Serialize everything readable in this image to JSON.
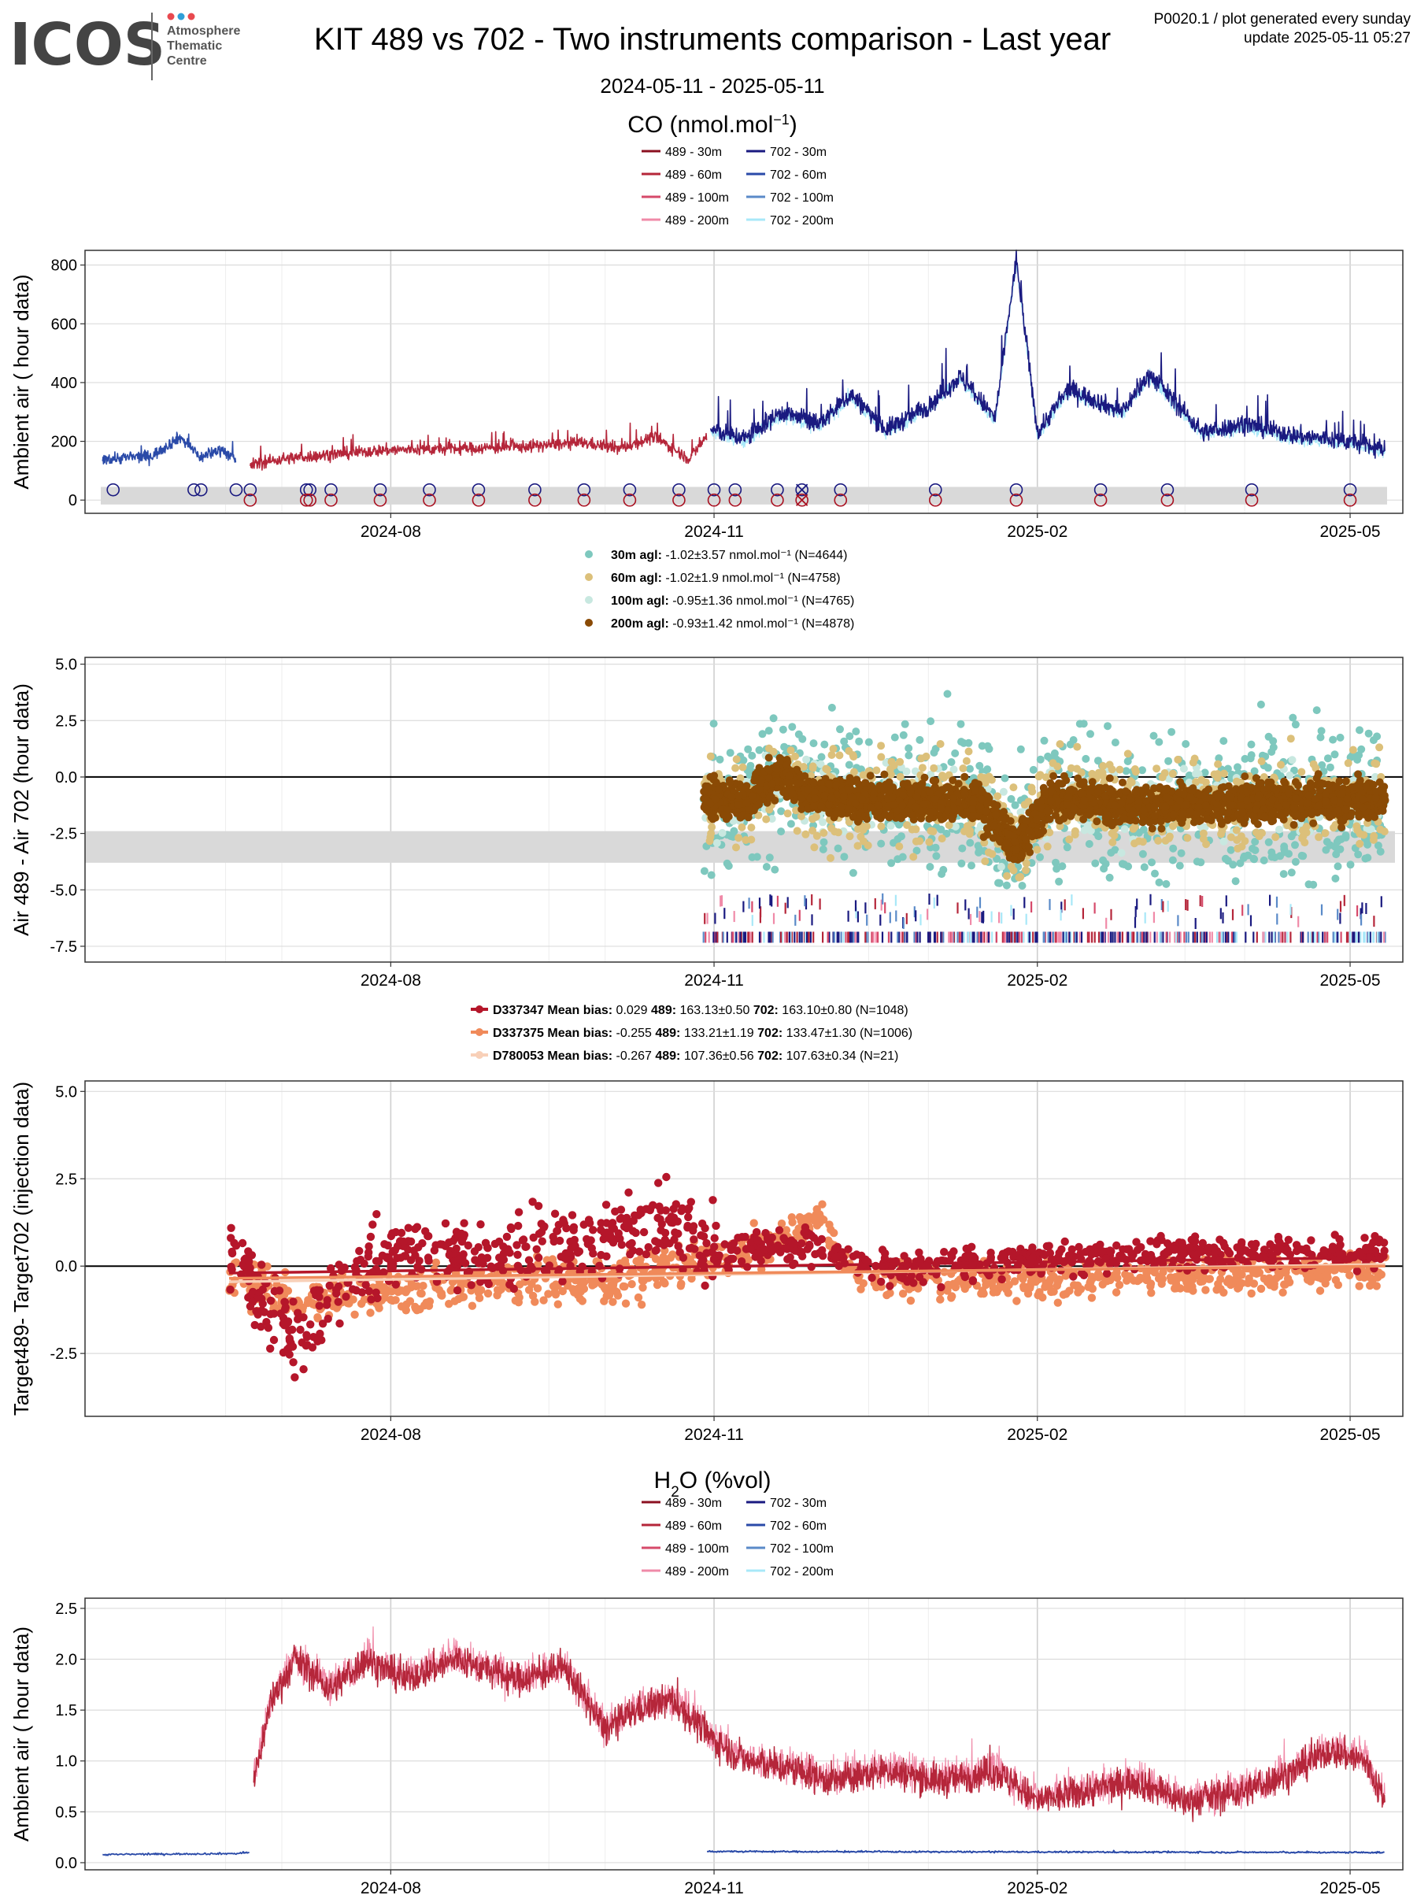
{
  "header": {
    "logo_word": "ICOS",
    "logo_sub": [
      "Atmosphere",
      "Thematic",
      "Centre"
    ],
    "logo_dot_colors": [
      "#e8494f",
      "#f58220",
      "#2f9fd8"
    ],
    "title": "KIT 489 vs 702 - Two instruments comparison - Last year",
    "date_range": "2024-05-11 - 2025-05-11",
    "info_line1": "P0020.1 / plot generated every sunday",
    "info_line2": "update  2025-05-11 05:27"
  },
  "x_axis": {
    "ticks": [
      "2024-08",
      "2024-11",
      "2025-02",
      "2025-05"
    ],
    "tick_dates": [
      "2024-08-01",
      "2024-11-01",
      "2025-02-01",
      "2025-05-01"
    ],
    "range": [
      "2024-05-06",
      "2025-05-16"
    ]
  },
  "co_section": {
    "title": "CO (nmol.mol⁻¹)",
    "legend": [
      {
        "label": "489 - 30m",
        "color": "#8b1020"
      },
      {
        "label": "702 - 30m",
        "color": "#1a1a80"
      },
      {
        "label": "489 - 60m",
        "color": "#b5263a"
      },
      {
        "label": "702 - 60m",
        "color": "#2a4aa8"
      },
      {
        "label": "489 - 100m",
        "color": "#d64a6a"
      },
      {
        "label": "702 - 100m",
        "color": "#5a8ac8"
      },
      {
        "label": "489 - 200m",
        "color": "#f08aa8"
      },
      {
        "label": "702 - 200m",
        "color": "#a8e8f8"
      }
    ]
  },
  "diff_legend": [
    {
      "label_bold": "30m agl:",
      "label": " -1.02±3.57 nmol.mol⁻¹   (N=4644)",
      "color": "#7ec8be"
    },
    {
      "label_bold": "60m agl:",
      "label": " -1.02±1.9 nmol.mol⁻¹   (N=4758)",
      "color": "#dcc07a"
    },
    {
      "label_bold": "100m agl:",
      "label": " -0.95±1.36 nmol.mol⁻¹   (N=4765)",
      "color": "#c8e8e0"
    },
    {
      "label_bold": "200m agl:",
      "label": " -0.93±1.42 nmol.mol⁻¹   (N=4878)",
      "color": "#8a4a05"
    }
  ],
  "target_legend": [
    {
      "name": "D337347",
      "bias_label": "Mean bias:",
      "bias": " 0.029",
      "a_label": "489:",
      "a": " 163.13±0.50",
      "b_label": "702:",
      "b": " 163.10±0.80 (N=1048)",
      "color": "#b5162a"
    },
    {
      "name": "D337375",
      "bias_label": "Mean bias:",
      "bias": " -0.255",
      "a_label": "489:",
      "a": " 133.21±1.19",
      "b_label": "702:",
      "b": " 133.47±1.30 (N=1006)",
      "color": "#f08a5a"
    },
    {
      "name": "D780053",
      "bias_label": "Mean bias:",
      "bias": " -0.267",
      "a_label": "489:",
      "a": " 107.36±0.56",
      "b_label": "702:",
      "b": " 107.63±0.34 (N=21)",
      "color": "#f8d0b8"
    }
  ],
  "h2o_section": {
    "title": "H₂O (%vol)",
    "legend": [
      {
        "label": "489 - 30m",
        "color": "#8b1020"
      },
      {
        "label": "702 - 30m",
        "color": "#1a1a80"
      },
      {
        "label": "489 - 60m",
        "color": "#b5263a"
      },
      {
        "label": "702 - 60m",
        "color": "#2a4aa8"
      },
      {
        "label": "489 - 100m",
        "color": "#d64a6a"
      },
      {
        "label": "702 - 100m",
        "color": "#5a8ac8"
      },
      {
        "label": "489 - 200m",
        "color": "#f08aa8"
      },
      {
        "label": "702 - 200m",
        "color": "#a8e8f8"
      }
    ]
  },
  "chart_data": [
    {
      "id": "co_ambient",
      "type": "line",
      "ylabel": "Ambient air ( hour data)",
      "ylim": [
        -45,
        850
      ],
      "yticks": [
        0,
        200,
        400,
        600,
        800
      ],
      "band": [
        -15,
        45
      ],
      "series": [
        {
          "name": "702 - 60m",
          "color": "#2a4aa8",
          "points": [
            [
              "2024-05-11",
              140
            ],
            [
              "2024-05-25",
              150
            ],
            [
              "2024-06-02",
              215
            ],
            [
              "2024-06-08",
              145
            ],
            [
              "2024-06-14",
              175
            ],
            [
              "2024-06-18",
              130
            ]
          ]
        },
        {
          "name": "489 - 60m",
          "color": "#b5263a",
          "points": [
            [
              "2024-06-22",
              120
            ],
            [
              "2024-07-01",
              140
            ],
            [
              "2024-07-15",
              155
            ],
            [
              "2024-07-30",
              170
            ],
            [
              "2024-08-20",
              175
            ],
            [
              "2024-09-05",
              180
            ],
            [
              "2024-09-25",
              195
            ],
            [
              "2024-10-05",
              175
            ],
            [
              "2024-10-15",
              215
            ],
            [
              "2024-10-25",
              140
            ],
            [
              "2024-10-30",
              220
            ]
          ]
        },
        {
          "name": "702 - 30m",
          "color": "#1a1a80",
          "points": [
            [
              "2024-10-31",
              240
            ],
            [
              "2024-11-10",
              210
            ],
            [
              "2024-11-20",
              300
            ],
            [
              "2024-12-01",
              260
            ],
            [
              "2024-12-10",
              360
            ],
            [
              "2024-12-20",
              240
            ],
            [
              "2025-01-01",
              320
            ],
            [
              "2025-01-10",
              420
            ],
            [
              "2025-01-20",
              280
            ],
            [
              "2025-01-26",
              820
            ],
            [
              "2025-02-01",
              230
            ],
            [
              "2025-02-10",
              380
            ],
            [
              "2025-02-25",
              300
            ],
            [
              "2025-03-05",
              430
            ],
            [
              "2025-03-20",
              230
            ],
            [
              "2025-04-01",
              260
            ],
            [
              "2025-04-15",
              220
            ],
            [
              "2025-05-01",
              200
            ],
            [
              "2025-05-11",
              170
            ]
          ]
        }
      ],
      "markers_702": [
        "2024-05-14",
        "2024-06-06",
        "2024-06-08",
        "2024-06-18",
        "2024-06-22",
        "2024-07-08",
        "2024-07-09",
        "2024-07-15",
        "2024-07-29",
        "2024-08-12",
        "2024-08-26",
        "2024-09-11",
        "2024-09-25",
        "2024-10-08",
        "2024-10-22",
        "2024-11-01",
        "2024-11-07",
        "2024-11-19",
        "2024-11-26",
        "2024-12-07",
        "2025-01-03",
        "2025-01-26",
        "2025-02-19",
        "2025-03-10",
        "2025-04-03",
        "2025-05-01"
      ],
      "markers_489": [
        "2024-06-22",
        "2024-07-08",
        "2024-07-09",
        "2024-07-15",
        "2024-07-29",
        "2024-08-12",
        "2024-08-26",
        "2024-09-11",
        "2024-09-25",
        "2024-10-08",
        "2024-10-22",
        "2024-11-01",
        "2024-11-07",
        "2024-11-19",
        "2024-11-26",
        "2024-12-07",
        "2025-01-03",
        "2025-01-26",
        "2025-02-19",
        "2025-03-10",
        "2025-04-03",
        "2025-05-01"
      ],
      "cross_markers": [
        "2024-11-26"
      ]
    },
    {
      "id": "co_diff",
      "type": "scatter",
      "ylabel": "Air 489 - Air 702 (hour data)",
      "ylim": [
        -8.2,
        5.3
      ],
      "yticks": [
        -7.5,
        -5.0,
        -2.5,
        0.0,
        2.5,
        5.0
      ],
      "ytick_labels": [
        "-7.5",
        "-5.0",
        "-2.5",
        "0.0",
        "2.5",
        "5.0"
      ],
      "band": [
        -3.8,
        -2.4
      ],
      "x_start": "2024-10-29",
      "x_end": "2025-05-11",
      "center_track": [
        [
          "2024-10-29",
          -0.9
        ],
        [
          "2024-11-10",
          -1.1
        ],
        [
          "2024-11-20",
          0.2
        ],
        [
          "2024-11-28",
          -0.8
        ],
        [
          "2024-12-15",
          -1.0
        ],
        [
          "2025-01-15",
          -1.1
        ],
        [
          "2025-01-26",
          -3.0
        ],
        [
          "2025-02-05",
          -1.0
        ],
        [
          "2025-03-01",
          -1.2
        ],
        [
          "2025-05-11",
          -1.0
        ]
      ],
      "flag_rows": [
        -7.1,
        -6.0
      ]
    },
    {
      "id": "co_target",
      "type": "scatter",
      "ylabel": "Target489- Target702 (injection data)",
      "ylim": [
        -4.3,
        5.3
      ],
      "yticks": [
        -2.5,
        0.0,
        2.5,
        5.0
      ],
      "ytick_labels": [
        "-2.5",
        "0.0",
        "2.5",
        "5.0"
      ],
      "x_start": "2024-06-16",
      "x_end": "2025-05-11",
      "series": [
        {
          "name": "D337347",
          "color": "#b5162a",
          "track": [
            [
              "2024-06-16",
              0.2
            ],
            [
              "2024-07-05",
              -2.2
            ],
            [
              "2024-07-20",
              -0.3
            ],
            [
              "2024-08-05",
              0.4
            ],
            [
              "2024-09-01",
              0.5
            ],
            [
              "2024-10-01",
              0.9
            ],
            [
              "2024-10-20",
              1.4
            ],
            [
              "2024-11-01",
              0.4
            ],
            [
              "2024-12-01",
              0.6
            ],
            [
              "2024-12-15",
              -0.1
            ],
            [
              "2025-01-15",
              0.1
            ],
            [
              "2025-03-01",
              0.3
            ],
            [
              "2025-05-11",
              0.4
            ]
          ]
        },
        {
          "name": "D337375",
          "color": "#f08a5a",
          "track": [
            [
              "2024-06-16",
              -0.3
            ],
            [
              "2024-07-05",
              -1.0
            ],
            [
              "2024-08-05",
              -0.7
            ],
            [
              "2024-09-01",
              -0.5
            ],
            [
              "2024-10-01",
              -0.4
            ],
            [
              "2024-11-15",
              0.6
            ],
            [
              "2024-12-01",
              1.4
            ],
            [
              "2024-12-10",
              -0.3
            ],
            [
              "2025-02-01",
              -0.4
            ],
            [
              "2025-05-11",
              -0.1
            ]
          ]
        }
      ],
      "trend_lines": [
        {
          "color": "#f8d0b8",
          "from": [
            "2024-06-16",
            -0.45
          ],
          "to": [
            "2025-05-11",
            0.05
          ]
        },
        {
          "color": "#f08a5a",
          "from": [
            "2024-06-16",
            -0.35
          ],
          "to": [
            "2025-05-11",
            0.0
          ]
        },
        {
          "color": "#b5162a",
          "from": [
            "2024-06-16",
            -0.2
          ],
          "to": [
            "2025-05-11",
            0.25
          ]
        }
      ]
    },
    {
      "id": "h2o_ambient",
      "type": "line",
      "ylabel": "Ambient air ( hour data)",
      "ylim": [
        -0.07,
        2.6
      ],
      "yticks": [
        0.0,
        0.5,
        1.0,
        1.5,
        2.0,
        2.5
      ],
      "ytick_labels": [
        "0.0",
        "0.5",
        "1.0",
        "1.5",
        "2.0",
        "2.5"
      ],
      "series": [
        {
          "name": "702 - 60m",
          "color": "#2a4aa8",
          "points": [
            [
              "2024-05-11",
              0.08
            ],
            [
              "2024-06-18",
              0.09
            ],
            [
              "2024-06-22",
              0.1
            ]
          ]
        },
        {
          "name": "489 - 60m",
          "color": "#b5263a",
          "points": [
            [
              "2024-06-23",
              0.8
            ],
            [
              "2024-06-28",
              1.6
            ],
            [
              "2024-07-05",
              2.0
            ],
            [
              "2024-07-15",
              1.7
            ],
            [
              "2024-07-25",
              2.0
            ],
            [
              "2024-08-05",
              1.8
            ],
            [
              "2024-08-20",
              2.0
            ],
            [
              "2024-09-05",
              1.8
            ],
            [
              "2024-09-20",
              1.9
            ],
            [
              "2024-10-01",
              1.3
            ],
            [
              "2024-10-10",
              1.5
            ],
            [
              "2024-10-20",
              1.6
            ],
            [
              "2024-11-01",
              1.2
            ],
            [
              "2024-11-10",
              1.0
            ],
            [
              "2024-11-25",
              0.9
            ],
            [
              "2024-12-05",
              0.8
            ],
            [
              "2024-12-20",
              0.9
            ],
            [
              "2025-01-05",
              0.8
            ],
            [
              "2025-01-20",
              0.9
            ],
            [
              "2025-02-01",
              0.6
            ],
            [
              "2025-02-15",
              0.7
            ],
            [
              "2025-03-01",
              0.8
            ],
            [
              "2025-03-15",
              0.6
            ],
            [
              "2025-04-01",
              0.7
            ],
            [
              "2025-04-15",
              0.9
            ],
            [
              "2025-04-25",
              1.1
            ],
            [
              "2025-05-05",
              1.0
            ],
            [
              "2025-05-11",
              0.6
            ]
          ]
        },
        {
          "name": "702 - 30m",
          "color": "#2a4aa8",
          "points": [
            [
              "2024-10-30",
              0.11
            ],
            [
              "2025-05-11",
              0.1
            ]
          ]
        }
      ]
    }
  ]
}
